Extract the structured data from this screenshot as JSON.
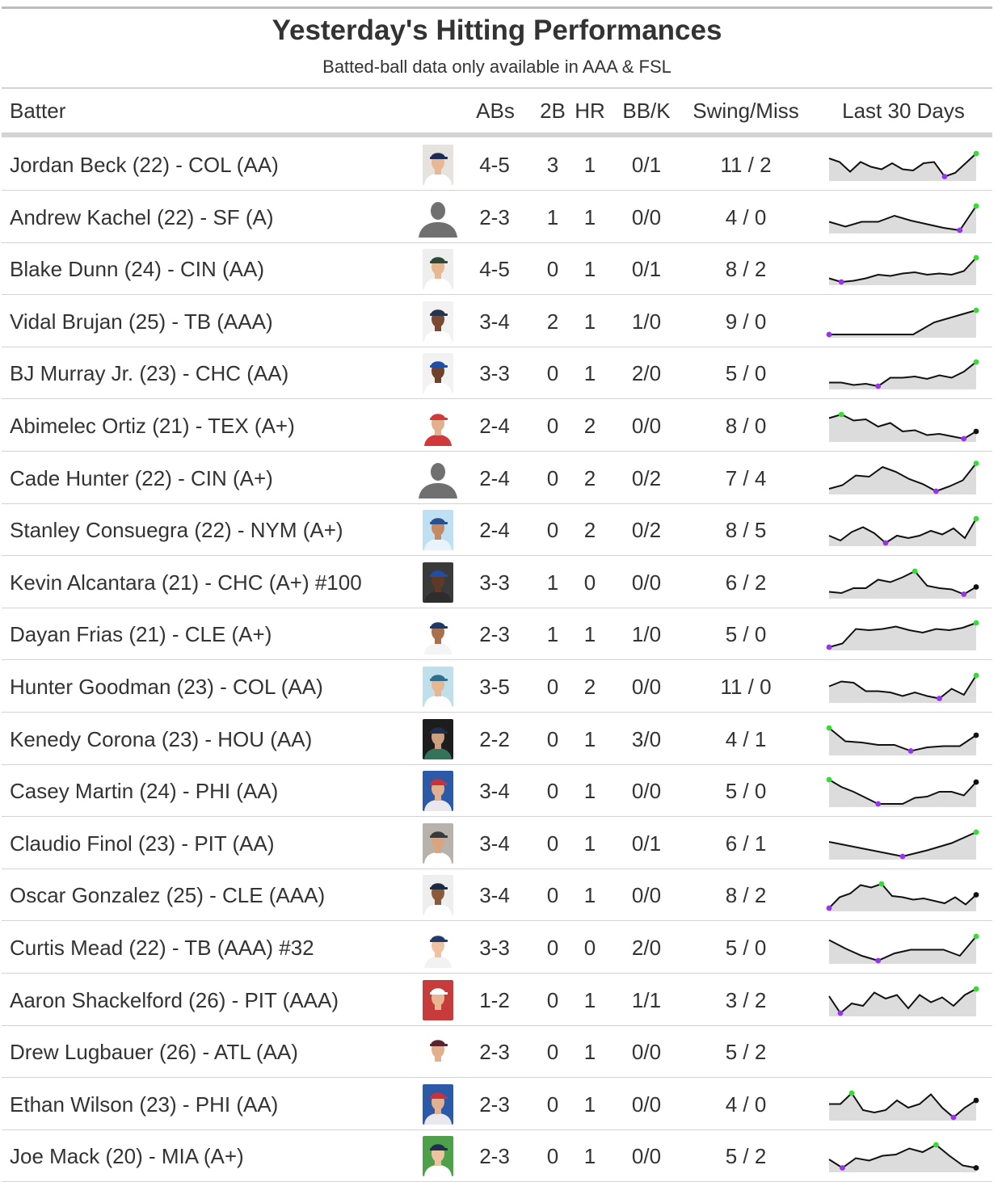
{
  "title": "Yesterday's Hitting Performances",
  "subtitle": "Batted-ball data only available in AAA & FSL",
  "headers": {
    "batter": "Batter",
    "abs": "ABs",
    "doubles": "2B",
    "hr": "HR",
    "bbk": "BB/K",
    "swing_miss": "Swing/Miss",
    "last30": "Last 30 Days"
  },
  "colors": {
    "spark_max": "#33dd33",
    "spark_min": "#9933ee",
    "spark_fill": "#dcdcdc",
    "spark_line": "#111111"
  },
  "rows": [
    {
      "batter": "Jordan Beck (22) - COL (AA)",
      "abs": "4-5",
      "doubles": "3",
      "hr": "1",
      "bbk": "0/1",
      "swing_miss": "11 / 2",
      "photo": {
        "bg": "#e6e2dd",
        "cap": "#1f2c52",
        "skin": "#e8b896",
        "jersey": "#ffffff",
        "silhouette": false
      },
      "spark": [
        0.8,
        0.65,
        0.25,
        0.65,
        0.45,
        0.35,
        0.6,
        0.35,
        0.3,
        0.6,
        0.65,
        0.05,
        0.2,
        0.6,
        1.0
      ]
    },
    {
      "batter": "Andrew Kachel (22) - SF (A)",
      "abs": "2-3",
      "doubles": "1",
      "hr": "1",
      "bbk": "0/0",
      "swing_miss": "4 / 0",
      "photo": {
        "silhouette": true
      },
      "spark": [
        0.35,
        0.15,
        0.35,
        0.35,
        0.6,
        0.4,
        0.25,
        0.1,
        0.0,
        1.0
      ]
    },
    {
      "batter": "Blake Dunn (24) - CIN (AA)",
      "abs": "4-5",
      "doubles": "0",
      "hr": "1",
      "bbk": "0/1",
      "swing_miss": "8 / 2",
      "photo": {
        "bg": "#eeeeee",
        "cap": "#2c4a3a",
        "skin": "#e7b792",
        "jersey": "#ffffff",
        "silhouette": false
      },
      "spark": [
        0.15,
        0.0,
        0.05,
        0.15,
        0.3,
        0.25,
        0.35,
        0.4,
        0.3,
        0.35,
        0.3,
        0.45,
        1.0
      ]
    },
    {
      "batter": "Vidal Brujan (25) - TB (AAA)",
      "abs": "3-4",
      "doubles": "2",
      "hr": "1",
      "bbk": "1/0",
      "swing_miss": "9 / 0",
      "photo": {
        "bg": "#f2f2f2",
        "cap": "#28334d",
        "skin": "#7a4b30",
        "jersey": "#ffffff",
        "silhouette": false
      },
      "spark": [
        0.0,
        0.0,
        0.0,
        0.0,
        0.0,
        0.5,
        0.75,
        1.0
      ]
    },
    {
      "batter": "BJ Murray Jr. (23) - CHC (AA)",
      "abs": "3-3",
      "doubles": "0",
      "hr": "1",
      "bbk": "2/0",
      "swing_miss": "5 / 0",
      "photo": {
        "bg": "#f2f2f2",
        "cap": "#1f4ea3",
        "skin": "#6e422a",
        "jersey": "#ffffff",
        "silhouette": false
      },
      "spark": [
        0.15,
        0.15,
        0.05,
        0.1,
        0.0,
        0.35,
        0.35,
        0.4,
        0.3,
        0.45,
        0.35,
        0.6,
        1.0
      ]
    },
    {
      "batter": "Abimelec Ortiz (21) - TEX (A+)",
      "abs": "2-4",
      "doubles": "0",
      "hr": "2",
      "bbk": "0/0",
      "swing_miss": "8 / 0",
      "photo": {
        "bg": "#ffffff",
        "cap": "#d13a3a",
        "skin": "#e2b08c",
        "jersey": "#d13a3a",
        "silhouette": false
      },
      "spark": [
        0.85,
        1.0,
        0.75,
        0.8,
        0.5,
        0.65,
        0.3,
        0.35,
        0.15,
        0.2,
        0.1,
        0.0,
        0.3
      ]
    },
    {
      "batter": "Cade Hunter (22) - CIN (A+)",
      "abs": "2-4",
      "doubles": "0",
      "hr": "2",
      "bbk": "0/2",
      "swing_miss": "7 / 4",
      "photo": {
        "silhouette": true
      },
      "spark": [
        0.1,
        0.25,
        0.65,
        0.6,
        1.0,
        0.8,
        0.5,
        0.3,
        0.0,
        0.2,
        0.45,
        1.15
      ]
    },
    {
      "batter": "Stanley Consuegra (22) - NYM (A+)",
      "abs": "2-4",
      "doubles": "0",
      "hr": "2",
      "bbk": "0/2",
      "swing_miss": "8 / 5",
      "photo": {
        "bg": "#bfe0f2",
        "cap": "#2a4f8f",
        "skin": "#c48a63",
        "jersey": "#e9f3fa",
        "silhouette": false
      },
      "spark": [
        0.3,
        0.1,
        0.45,
        0.65,
        0.4,
        0.0,
        0.3,
        0.2,
        0.3,
        0.5,
        0.35,
        0.6,
        0.2,
        1.0
      ]
    },
    {
      "batter": "Kevin Alcantara (21) - CHC (A+) #100",
      "abs": "3-3",
      "doubles": "1",
      "hr": "0",
      "bbk": "0/0",
      "swing_miss": "6 / 2",
      "photo": {
        "bg": "#3a3a3a",
        "cap": "#1f4ea3",
        "skin": "#5e3a26",
        "jersey": "#2d2d2d",
        "silhouette": false
      },
      "spark": [
        0.15,
        0.1,
        0.3,
        0.3,
        0.65,
        0.55,
        0.75,
        1.0,
        0.4,
        0.3,
        0.25,
        0.05,
        0.35
      ]
    },
    {
      "batter": "Dayan Frias (21) - CLE (A+)",
      "abs": "2-3",
      "doubles": "1",
      "hr": "1",
      "bbk": "1/0",
      "swing_miss": "5 / 0",
      "photo": {
        "bg": "#ffffff",
        "cap": "#1b3a6b",
        "skin": "#a8704d",
        "jersey": "#f4f4f4",
        "silhouette": false
      },
      "spark": [
        0.0,
        0.15,
        0.75,
        0.7,
        0.75,
        0.85,
        0.7,
        0.6,
        0.75,
        0.7,
        0.8,
        1.0
      ]
    },
    {
      "batter": "Hunter Goodman (23) - COL (AA)",
      "abs": "3-5",
      "doubles": "0",
      "hr": "2",
      "bbk": "0/0",
      "swing_miss": "11 / 0",
      "photo": {
        "bg": "#bfe0ea",
        "cap": "#2e6f8e",
        "skin": "#e7b792",
        "jersey": "#ffffff",
        "silhouette": false
      },
      "spark": [
        0.55,
        0.75,
        0.7,
        0.35,
        0.35,
        0.3,
        0.15,
        0.3,
        0.15,
        0.05,
        0.45,
        0.2,
        1.0
      ]
    },
    {
      "batter": "Kenedy Corona (23) - HOU (AA)",
      "abs": "2-2",
      "doubles": "0",
      "hr": "1",
      "bbk": "3/0",
      "swing_miss": "4 / 1",
      "photo": {
        "bg": "#1d1d1d",
        "cap": "#1e2f52",
        "skin": "#caa07e",
        "jersey": "#33735a",
        "silhouette": false
      },
      "spark": [
        1.0,
        0.45,
        0.4,
        0.3,
        0.3,
        0.05,
        0.2,
        0.25,
        0.25,
        0.7
      ]
    },
    {
      "batter": "Casey Martin (24) - PHI (AA)",
      "abs": "3-4",
      "doubles": "0",
      "hr": "1",
      "bbk": "0/0",
      "swing_miss": "5 / 0",
      "photo": {
        "bg": "#2c5aa8",
        "cap": "#c8323a",
        "skin": "#e2b08c",
        "jersey": "#e8e8ee",
        "silhouette": false
      },
      "spark": [
        1.0,
        0.7,
        0.5,
        0.25,
        0.0,
        0.0,
        0.0,
        0.25,
        0.3,
        0.5,
        0.5,
        0.35,
        0.9
      ]
    },
    {
      "batter": "Claudio Finol (23) - PIT (AA)",
      "abs": "3-4",
      "doubles": "0",
      "hr": "1",
      "bbk": "0/1",
      "swing_miss": "6 / 1",
      "photo": {
        "bg": "#b7b2ab",
        "cap": "#3a3a3a",
        "skin": "#d9a57e",
        "jersey": "#ffffff",
        "silhouette": false
      },
      "spark": [
        0.6,
        0.4,
        0.2,
        0.0,
        0.25,
        0.55,
        1.0
      ]
    },
    {
      "batter": "Oscar Gonzalez (25) - CLE (AAA)",
      "abs": "3-4",
      "doubles": "0",
      "hr": "1",
      "bbk": "0/0",
      "swing_miss": "8 / 2",
      "photo": {
        "bg": "#eeeeee",
        "cap": "#1d2a44",
        "skin": "#8a5a3a",
        "jersey": "#ffffff",
        "silhouette": false
      },
      "spark": [
        0.0,
        0.45,
        0.6,
        0.95,
        0.85,
        1.0,
        0.5,
        0.45,
        0.35,
        0.4,
        0.3,
        0.2,
        0.45,
        0.15,
        0.55
      ]
    },
    {
      "batter": "Curtis Mead (22) - TB (AAA) #32",
      "abs": "3-3",
      "doubles": "0",
      "hr": "0",
      "bbk": "2/0",
      "swing_miss": "5 / 0",
      "photo": {
        "bg": "#ffffff",
        "cap": "#1f3a6b",
        "skin": "#eec3a2",
        "jersey": "#f2f2f2",
        "silhouette": false
      },
      "spark": [
        0.85,
        0.5,
        0.2,
        0.0,
        0.3,
        0.45,
        0.45,
        0.45,
        0.2,
        1.0
      ]
    },
    {
      "batter": "Aaron Shackelford (26) - PIT (AAA)",
      "abs": "1-2",
      "doubles": "0",
      "hr": "1",
      "bbk": "1/1",
      "swing_miss": "3 / 2",
      "photo": {
        "bg": "#c63b3b",
        "cap": "#ffffff",
        "skin": "#e7b792",
        "jersey": "#c63b3b",
        "silhouette": false
      },
      "spark": [
        0.7,
        0.0,
        0.4,
        0.3,
        0.85,
        0.6,
        0.75,
        0.2,
        0.75,
        0.45,
        0.65,
        0.3,
        0.75,
        1.0
      ]
    },
    {
      "batter": "Drew Lugbauer (26) - ATL (AA)",
      "abs": "2-3",
      "doubles": "0",
      "hr": "1",
      "bbk": "0/0",
      "swing_miss": "5 / 2",
      "photo": {
        "bg": "#ffffff",
        "cap": "#5a2330",
        "skin": "#e2b08c",
        "jersey": "#ffffff",
        "silhouette": false
      },
      "spark": []
    },
    {
      "batter": "Ethan Wilson (23) - PHI (AA)",
      "abs": "2-3",
      "doubles": "0",
      "hr": "1",
      "bbk": "0/0",
      "swing_miss": "4 / 0",
      "photo": {
        "bg": "#2c5aa8",
        "cap": "#c8323a",
        "skin": "#e2b08c",
        "jersey": "#e8e8ee",
        "silhouette": false
      },
      "spark": [
        0.55,
        0.55,
        1.0,
        0.3,
        0.2,
        0.3,
        0.7,
        0.4,
        0.55,
        0.95,
        0.4,
        0.0,
        0.4,
        0.7
      ]
    },
    {
      "batter": "Joe Mack (20) - MIA (A+)",
      "abs": "2-3",
      "doubles": "0",
      "hr": "1",
      "bbk": "0/0",
      "swing_miss": "5 / 2",
      "photo": {
        "bg": "#4fa04a",
        "cap": "#1e2f52",
        "skin": "#eec3a2",
        "jersey": "#ffffff",
        "silhouette": false
      },
      "spark": [
        0.4,
        0.05,
        0.45,
        0.35,
        0.55,
        0.6,
        0.85,
        0.7,
        1.0,
        0.55,
        0.15,
        0.05
      ]
    }
  ]
}
